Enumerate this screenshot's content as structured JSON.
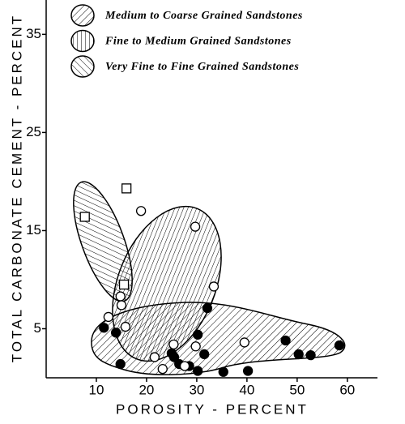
{
  "chart_data": {
    "type": "scatter",
    "x_label": "POROSITY - PERCENT",
    "y_label": "TOTAL CARBONATE CEMENT - PERCENT",
    "xlim": [
      0,
      66
    ],
    "ylim": [
      0,
      38.5
    ],
    "xticks": [
      10,
      20,
      30,
      40,
      50,
      60
    ],
    "yticks": [
      5,
      15,
      25,
      35
    ],
    "series": [
      {
        "name": "Medium to Coarse Grained Sandstones",
        "color": "#000000",
        "marker": "circle",
        "filled": true,
        "x": [
          11.5,
          13.9,
          14.8,
          25,
          25.5,
          26.5,
          28.5,
          30.2,
          32.1,
          31.5,
          30.2,
          35.3,
          40.2,
          47.7,
          50.3,
          52.7,
          58.4
        ],
        "values": [
          5.1,
          4.6,
          1.4,
          2.5,
          2.1,
          1.4,
          1.2,
          4.4,
          7.1,
          2.4,
          0.7,
          0.6,
          0.7,
          3.8,
          2.4,
          2.3,
          3.3
        ]
      },
      {
        "name": "Fine to Medium Grained Sandstones",
        "color": "#000000",
        "marker": "circle",
        "filled": false,
        "x": [
          18.9,
          29.7,
          33.4,
          14.8,
          15,
          12.4,
          15.8,
          39.5,
          29.8,
          25.4,
          21.6,
          23.2,
          27.6
        ],
        "values": [
          17.0,
          15.4,
          9.3,
          8.3,
          7.4,
          6.2,
          5.2,
          3.6,
          3.2,
          3.4,
          2.1,
          0.9,
          1.2
        ]
      },
      {
        "name": "Very Fine to Fine Grained Sandstones",
        "color": "#000000",
        "marker": "square",
        "filled": false,
        "x": [
          7.7,
          16,
          15.5
        ],
        "values": [
          16.4,
          19.3,
          9.5
        ]
      }
    ]
  }
}
